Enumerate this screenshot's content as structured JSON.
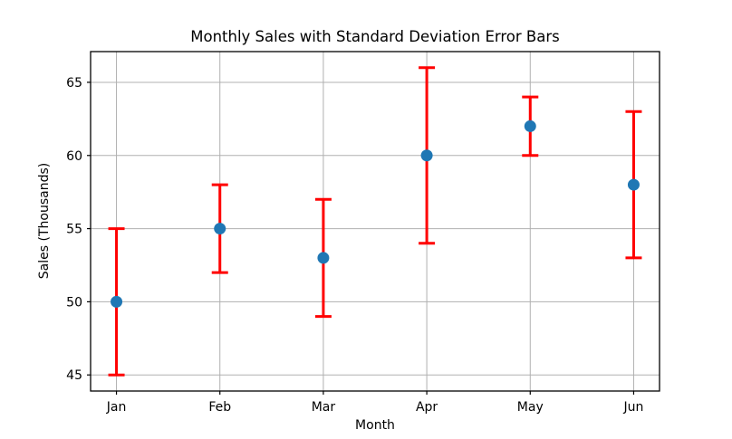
{
  "chart_data": {
    "type": "scatter",
    "title": "Monthly Sales with Standard Deviation Error Bars",
    "xlabel": "Month",
    "ylabel": "Sales (Thousands)",
    "categories": [
      "Jan",
      "Feb",
      "Mar",
      "Apr",
      "May",
      "Jun"
    ],
    "series": [
      {
        "name": "Monthly Sales",
        "values": [
          50,
          55,
          53,
          60,
          62,
          58
        ],
        "errors": [
          5,
          3,
          4,
          6,
          2,
          5
        ]
      }
    ],
    "yticks": [
      45,
      50,
      55,
      60,
      65
    ],
    "ylim": [
      43.9,
      67.1
    ],
    "grid": true,
    "legend_position": "none",
    "colors": {
      "marker": "#1f77b4",
      "errorbar": "#ff0000",
      "grid": "#b0b0b0",
      "axis": "#000000",
      "background": "#ffffff"
    }
  }
}
